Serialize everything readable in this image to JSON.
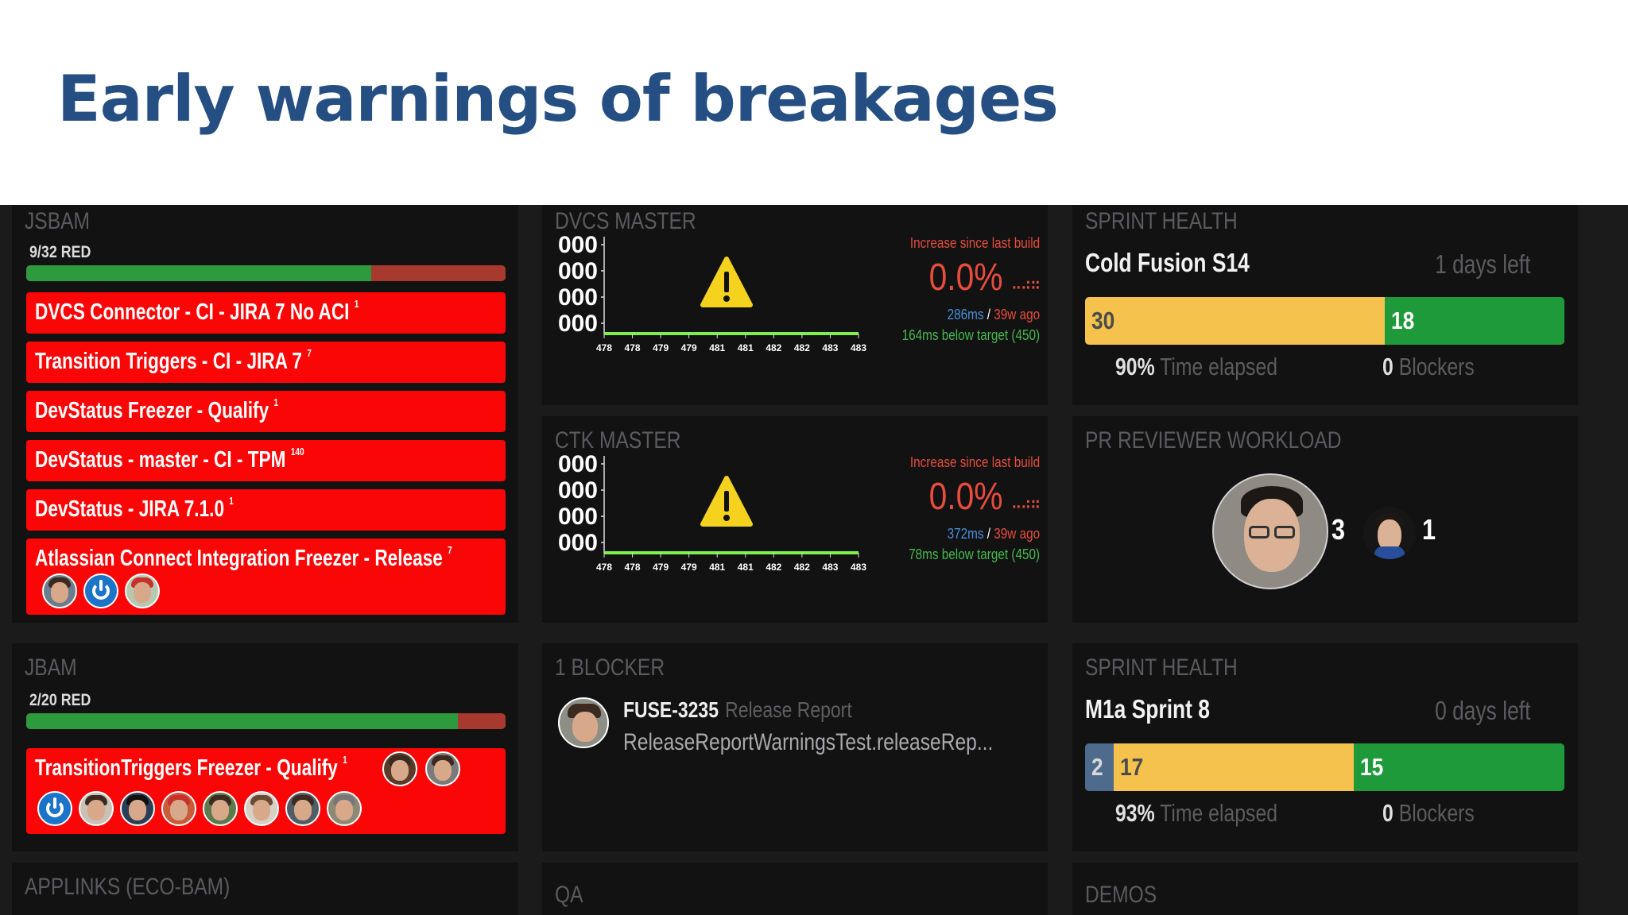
{
  "slide": {
    "title": "Early warnings of breakages"
  },
  "jsbam": {
    "title": "JSBAM",
    "red_count": "9/32 RED",
    "progress_green_fraction": 0.72,
    "builds": [
      {
        "label": "DVCS Connector - CI - JIRA 7 No ACI",
        "count": "1"
      },
      {
        "label": "Transition Triggers - CI - JIRA 7",
        "count": "7"
      },
      {
        "label": "DevStatus Freezer - Qualify",
        "count": "1"
      },
      {
        "label": "DevStatus - master - CI - TPM",
        "count": "140"
      },
      {
        "label": "DevStatus - JIRA 7.1.0",
        "count": "1"
      },
      {
        "label": "Atlassian Connect Integration Freezer - Release",
        "count": "7"
      }
    ]
  },
  "jbam": {
    "title": "JBAM",
    "red_count": "2/20 RED",
    "progress_green_fraction": 0.9,
    "builds": [
      {
        "label": "TransitionTriggers Freezer - Qualify",
        "count": "1"
      }
    ]
  },
  "applinks": {
    "title": "APPLINKS (ECO-BAM)"
  },
  "dvcs_master": {
    "title": "DVCS MASTER",
    "y_ticks": [
      "000",
      "000",
      "000",
      "000"
    ],
    "x_ticks": [
      "478",
      "478",
      "479",
      "479",
      "481",
      "481",
      "482",
      "482",
      "483",
      "483"
    ],
    "caption": "Increase since last build",
    "percent": "0.0%",
    "timing_ms": "286ms",
    "timing_sep": "/",
    "timing_ago": "39w ago",
    "target": "164ms below target (450)"
  },
  "ctk_master": {
    "title": "CTK MASTER",
    "y_ticks": [
      "000",
      "000",
      "000",
      "000"
    ],
    "x_ticks": [
      "478",
      "478",
      "479",
      "479",
      "481",
      "481",
      "482",
      "482",
      "483",
      "483"
    ],
    "caption": "Increase since last build",
    "percent": "0.0%",
    "timing_ms": "372ms",
    "timing_sep": "/",
    "timing_ago": "39w ago",
    "target": "78ms below target (450)"
  },
  "blocker": {
    "title": "1 BLOCKER",
    "key": "FUSE-3235",
    "component": "Release Report",
    "summary": "ReleaseReportWarningsTest.releaseRep..."
  },
  "qa": {
    "title": "QA"
  },
  "sprint1": {
    "title": "SPRINT HEALTH",
    "name": "Cold Fusion S14",
    "days_left": "1 days left",
    "segments": [
      {
        "value": "30",
        "color": "yellow",
        "fraction": 0.625
      },
      {
        "value": "18",
        "color": "green",
        "fraction": 0.375
      }
    ],
    "elapsed_value": "90%",
    "elapsed_label": "Time elapsed",
    "blockers_value": "0",
    "blockers_label": "Blockers"
  },
  "pr_reviewer": {
    "title": "PR REVIEWER WORKLOAD",
    "reviewers": [
      {
        "count": "3"
      },
      {
        "count": "1"
      }
    ]
  },
  "sprint2": {
    "title": "SPRINT HEALTH",
    "name": "M1a Sprint 8",
    "days_left": "0 days left",
    "segments": [
      {
        "value": "2",
        "color": "grey",
        "fraction": 0.06
      },
      {
        "value": "17",
        "color": "yellow",
        "fraction": 0.5
      },
      {
        "value": "15",
        "color": "green",
        "fraction": 0.44
      }
    ],
    "elapsed_value": "93%",
    "elapsed_label": "Time elapsed",
    "blockers_value": "0",
    "blockers_label": "Blockers"
  },
  "demos": {
    "title": "DEMOS"
  },
  "colors": {
    "title": "#254f83",
    "red_row": "#fa0606",
    "green": "#2e9a3e",
    "yellow": "#f4c24d",
    "chart_line": "#7cf14c"
  }
}
